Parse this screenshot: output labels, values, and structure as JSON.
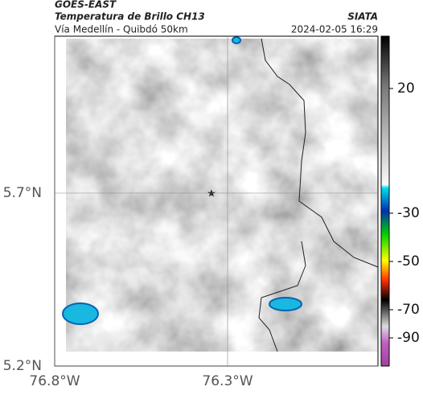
{
  "header": {
    "source": "GOES-EAST",
    "title": "Temperatura de Brillo CH13",
    "org": "SIATA",
    "subtitle": "Vía Medellín - Quibdó 50km",
    "datetime": "2024-02-05 16:29"
  },
  "map": {
    "xticks": [
      {
        "value": -76.8,
        "label": "76.8°W"
      },
      {
        "value": -76.3,
        "label": "76.3°W"
      }
    ],
    "yticks": [
      {
        "value": 5.2,
        "label": "5.2°N"
      },
      {
        "value": 5.7,
        "label": "5.7°N"
      }
    ]
  },
  "colorbar": {
    "ticks": [
      20,
      -30,
      -50,
      -70,
      -90
    ]
  }
}
